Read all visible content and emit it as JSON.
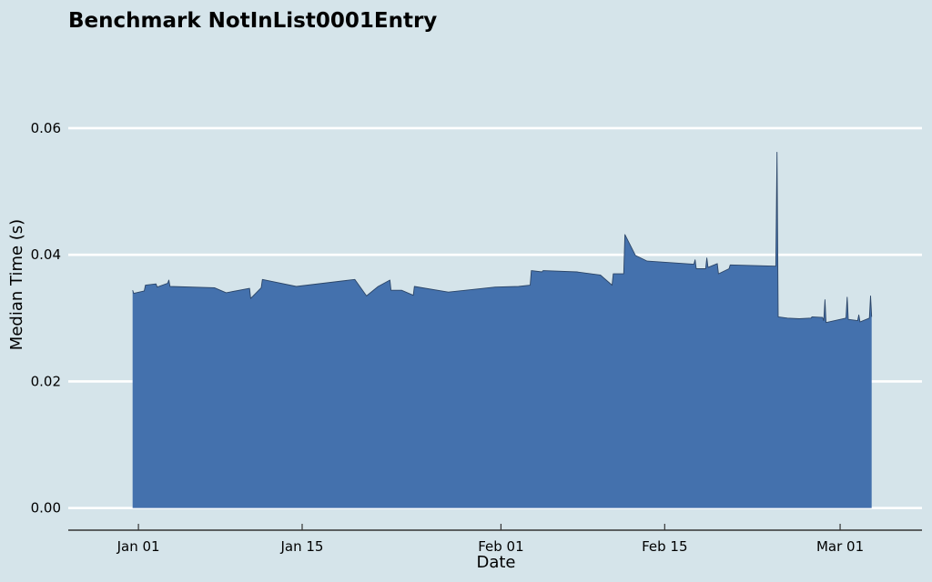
{
  "chart_data": {
    "type": "area",
    "title": "Benchmark NotInList0001Entry",
    "xlabel": "Date",
    "ylabel": "Median Time (s)",
    "xlim": [
      "2023-12-26",
      "2024-03-08"
    ],
    "ylim": [
      -0.0035,
      0.0745
    ],
    "y_ticks": [
      0.0,
      0.02,
      0.04,
      0.06
    ],
    "y_tick_labels": [
      "0.00",
      "0.02",
      "0.04",
      "0.06"
    ],
    "x_ticks": [
      "2024-01-01",
      "2024-01-15",
      "2024-02-01",
      "2024-02-15",
      "2024-03-01"
    ],
    "x_tick_labels": [
      "Jan 01",
      "Jan 15",
      "Feb 01",
      "Feb 15",
      "Mar 01"
    ],
    "grid": "horizontal",
    "legend": "none",
    "fill_color": "#4471ad",
    "edge_color": "#2b4568",
    "background_color": "#d5e4ea",
    "series": [
      {
        "points": [
          [
            "2023-12-31",
            0.0344
          ],
          [
            "2023-12-31",
            0.0339
          ],
          [
            "2024-01-01",
            0.0343
          ],
          [
            "2024-01-01",
            0.0352
          ],
          [
            "2024-01-02",
            0.0354
          ],
          [
            "2024-01-02",
            0.0349
          ],
          [
            "2024-01-03",
            0.0355
          ],
          [
            "2024-01-03",
            0.036
          ],
          [
            "2024-01-03",
            0.035
          ],
          [
            "2024-01-07",
            0.0348
          ],
          [
            "2024-01-08",
            0.034
          ],
          [
            "2024-01-10",
            0.0347
          ],
          [
            "2024-01-10",
            0.0331
          ],
          [
            "2024-01-11",
            0.0348
          ],
          [
            "2024-01-11",
            0.0361
          ],
          [
            "2024-01-14",
            0.035
          ],
          [
            "2024-01-19",
            0.0361
          ],
          [
            "2024-01-20",
            0.0335
          ],
          [
            "2024-01-21",
            0.035
          ],
          [
            "2024-01-22",
            0.036
          ],
          [
            "2024-01-22",
            0.0344
          ],
          [
            "2024-01-23",
            0.0344
          ],
          [
            "2024-01-24",
            0.0336
          ],
          [
            "2024-01-24",
            0.035
          ],
          [
            "2024-01-27",
            0.0341
          ],
          [
            "2024-01-31",
            0.0349
          ],
          [
            "2024-02-02",
            0.035
          ],
          [
            "2024-02-03",
            0.0352
          ],
          [
            "2024-02-03",
            0.0375
          ],
          [
            "2024-02-04",
            0.0373
          ],
          [
            "2024-02-04",
            0.0375
          ],
          [
            "2024-02-07",
            0.0373
          ],
          [
            "2024-02-09",
            0.0368
          ],
          [
            "2024-02-10",
            0.0352
          ],
          [
            "2024-02-10",
            0.037
          ],
          [
            "2024-02-11",
            0.037
          ],
          [
            "2024-02-11",
            0.0432
          ],
          [
            "2024-02-12",
            0.0399
          ],
          [
            "2024-02-13",
            0.039
          ],
          [
            "2024-02-17",
            0.0385
          ],
          [
            "2024-02-17",
            0.0392
          ],
          [
            "2024-02-17",
            0.0378
          ],
          [
            "2024-02-18",
            0.0378
          ],
          [
            "2024-02-18",
            0.0395
          ],
          [
            "2024-02-18",
            0.038
          ],
          [
            "2024-02-19",
            0.0386
          ],
          [
            "2024-02-19",
            0.037
          ],
          [
            "2024-02-20",
            0.0378
          ],
          [
            "2024-02-20",
            0.0384
          ],
          [
            "2024-02-24",
            0.0382
          ],
          [
            "2024-02-24",
            0.0562
          ],
          [
            "2024-02-24",
            0.0302
          ],
          [
            "2024-02-25",
            0.03
          ],
          [
            "2024-02-26",
            0.0299
          ],
          [
            "2024-02-27",
            0.03
          ],
          [
            "2024-02-27",
            0.0302
          ],
          [
            "2024-02-28",
            0.0301
          ],
          [
            "2024-02-28",
            0.0296
          ],
          [
            "2024-02-28",
            0.0329
          ],
          [
            "2024-02-28",
            0.0293
          ],
          [
            "2024-03-01",
            0.03
          ],
          [
            "2024-03-01",
            0.0333
          ],
          [
            "2024-03-01",
            0.0298
          ],
          [
            "2024-03-02",
            0.0296
          ],
          [
            "2024-03-02",
            0.0305
          ],
          [
            "2024-03-02",
            0.0294
          ],
          [
            "2024-03-03",
            0.03
          ],
          [
            "2024-03-03",
            0.0335
          ],
          [
            "2024-03-03",
            0.0302
          ]
        ]
      }
    ]
  }
}
